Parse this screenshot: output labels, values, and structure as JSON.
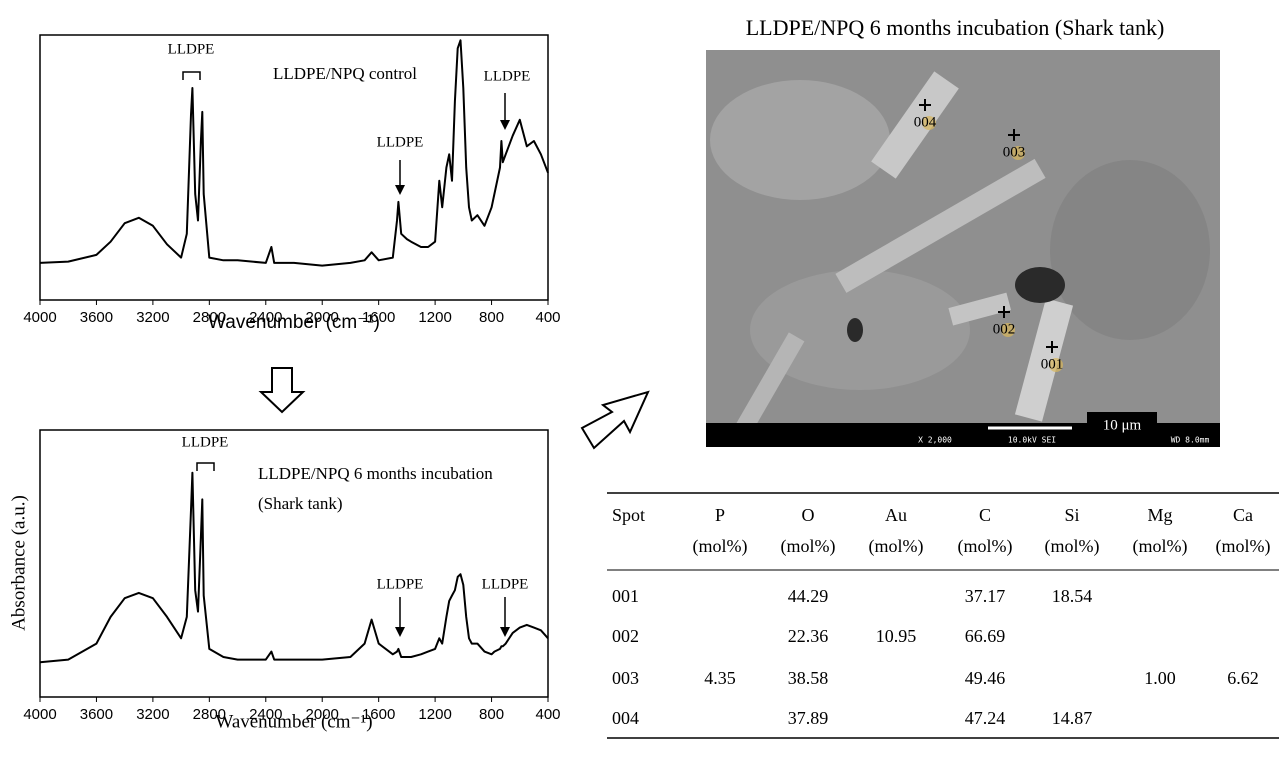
{
  "chart_data": [
    {
      "type": "line",
      "xlabel": "Wavenumber (cm⁻¹)",
      "annotations": [
        "LLDPE",
        "LLDPE/NPQ control",
        "LLDPE",
        "LLDPE"
      ],
      "xlim": [
        4000,
        400
      ],
      "xticks": [
        4000,
        3600,
        3200,
        2800,
        2400,
        2000,
        1600,
        1200,
        800,
        400
      ],
      "ylim": [
        0,
        1
      ],
      "x": [
        4000,
        3800,
        3600,
        3500,
        3400,
        3300,
        3200,
        3100,
        3000,
        2960,
        2930,
        2920,
        2900,
        2880,
        2860,
        2850,
        2840,
        2800,
        2700,
        2600,
        2400,
        2360,
        2340,
        2200,
        2000,
        1800,
        1700,
        1650,
        1600,
        1500,
        1470,
        1460,
        1440,
        1400,
        1370,
        1300,
        1250,
        1200,
        1170,
        1150,
        1120,
        1100,
        1080,
        1060,
        1040,
        1020,
        1000,
        980,
        960,
        940,
        900,
        850,
        800,
        780,
        740,
        730,
        720,
        700,
        650,
        600,
        550,
        500,
        450,
        400
      ],
      "series": [
        {
          "color": "#000000",
          "values": [
            0.14,
            0.145,
            0.17,
            0.22,
            0.29,
            0.31,
            0.28,
            0.21,
            0.16,
            0.25,
            0.7,
            0.8,
            0.4,
            0.3,
            0.6,
            0.71,
            0.4,
            0.16,
            0.15,
            0.15,
            0.14,
            0.2,
            0.14,
            0.14,
            0.13,
            0.14,
            0.15,
            0.18,
            0.15,
            0.16,
            0.3,
            0.37,
            0.25,
            0.23,
            0.22,
            0.2,
            0.2,
            0.22,
            0.45,
            0.35,
            0.5,
            0.55,
            0.45,
            0.75,
            0.95,
            0.98,
            0.8,
            0.5,
            0.35,
            0.3,
            0.32,
            0.28,
            0.35,
            0.4,
            0.5,
            0.6,
            0.52,
            0.55,
            0.62,
            0.68,
            0.58,
            0.6,
            0.55,
            0.48
          ]
        }
      ]
    },
    {
      "type": "line",
      "xlabel": "Wavenumber (cm⁻¹)",
      "ylabel": "Absorbance (a.u.)",
      "annotations": [
        "LLDPE",
        "LLDPE/NPQ 6 months incubation",
        "(Shark tank)",
        "LLDPE",
        "LLDPE"
      ],
      "xlim": [
        4000,
        400
      ],
      "xticks": [
        4000,
        3600,
        3200,
        2800,
        2400,
        2000,
        1600,
        1200,
        800,
        400
      ],
      "ylim": [
        0,
        1
      ],
      "x": [
        4000,
        3800,
        3600,
        3500,
        3400,
        3300,
        3200,
        3100,
        3000,
        2960,
        2930,
        2920,
        2900,
        2880,
        2860,
        2850,
        2840,
        2800,
        2700,
        2600,
        2400,
        2360,
        2340,
        2200,
        2000,
        1800,
        1700,
        1650,
        1600,
        1500,
        1470,
        1460,
        1440,
        1400,
        1370,
        1300,
        1250,
        1200,
        1170,
        1150,
        1120,
        1100,
        1080,
        1060,
        1040,
        1020,
        1000,
        980,
        960,
        940,
        900,
        850,
        800,
        780,
        740,
        730,
        720,
        700,
        650,
        600,
        550,
        500,
        450,
        400
      ],
      "series": [
        {
          "color": "#000000",
          "values": [
            0.13,
            0.14,
            0.2,
            0.3,
            0.37,
            0.39,
            0.37,
            0.3,
            0.22,
            0.3,
            0.7,
            0.84,
            0.4,
            0.32,
            0.6,
            0.74,
            0.38,
            0.18,
            0.15,
            0.14,
            0.14,
            0.17,
            0.14,
            0.14,
            0.14,
            0.15,
            0.2,
            0.29,
            0.2,
            0.16,
            0.17,
            0.18,
            0.15,
            0.15,
            0.15,
            0.16,
            0.17,
            0.18,
            0.22,
            0.2,
            0.3,
            0.36,
            0.38,
            0.4,
            0.45,
            0.46,
            0.42,
            0.3,
            0.22,
            0.2,
            0.2,
            0.17,
            0.16,
            0.17,
            0.18,
            0.19,
            0.19,
            0.2,
            0.24,
            0.26,
            0.27,
            0.26,
            0.25,
            0.22
          ]
        }
      ]
    }
  ],
  "sem": {
    "title": "LLDPE/NPQ 6 months incubation (Shark tank)",
    "spots": [
      "004",
      "003",
      "002",
      "001"
    ],
    "scale_bar": "10 μm",
    "magnification": "X 2,000",
    "voltage": "10.0kV SEI",
    "working_distance": "WD 8.0mm"
  },
  "table": {
    "header": [
      {
        "name": "Spot"
      },
      {
        "name": "P",
        "unit": "(mol%)"
      },
      {
        "name": "O",
        "unit": "(mol%)"
      },
      {
        "name": "Au",
        "unit": "(mol%)"
      },
      {
        "name": "C",
        "unit": "(mol%)"
      },
      {
        "name": "Si",
        "unit": "(mol%)"
      },
      {
        "name": "Mg",
        "unit": "(mol%)"
      },
      {
        "name": "Ca",
        "unit": "(mol%)"
      }
    ],
    "rows": [
      [
        "001",
        null,
        "44.29",
        null,
        "37.17",
        "18.54",
        null,
        null
      ],
      [
        "002",
        null,
        "22.36",
        "10.95",
        "66.69",
        null,
        null,
        null
      ],
      [
        "003",
        "4.35",
        "38.58",
        null,
        "49.46",
        null,
        "1.00",
        "6.62"
      ],
      [
        "004",
        null,
        "37.89",
        null,
        "47.24",
        "14.87",
        null,
        null
      ]
    ]
  }
}
